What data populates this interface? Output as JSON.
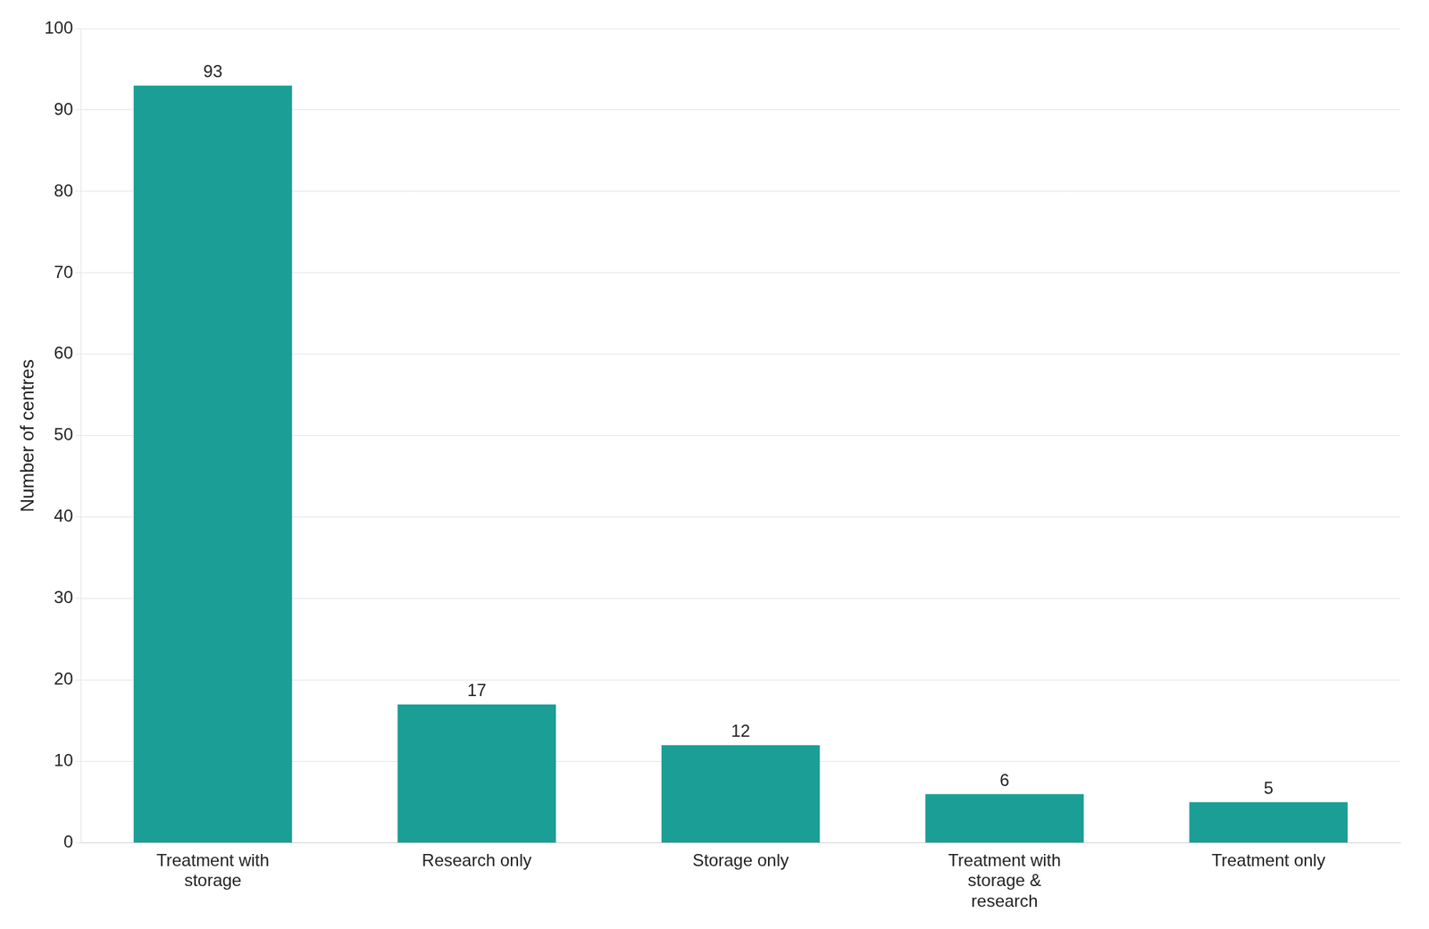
{
  "chart_data": {
    "type": "bar",
    "categories": [
      "Treatment with\nstorage",
      "Research only",
      "Storage only",
      "Treatment with\nstorage &\nresearch",
      "Treatment only"
    ],
    "values": [
      93,
      17,
      12,
      6,
      5
    ],
    "color": "#1a9e96",
    "ylabel": "Number of centres",
    "ylim": [
      0,
      100
    ],
    "yticks": [
      0,
      10,
      20,
      30,
      40,
      50,
      60,
      70,
      80,
      90,
      100
    ],
    "grid": true,
    "data_labels": true
  }
}
